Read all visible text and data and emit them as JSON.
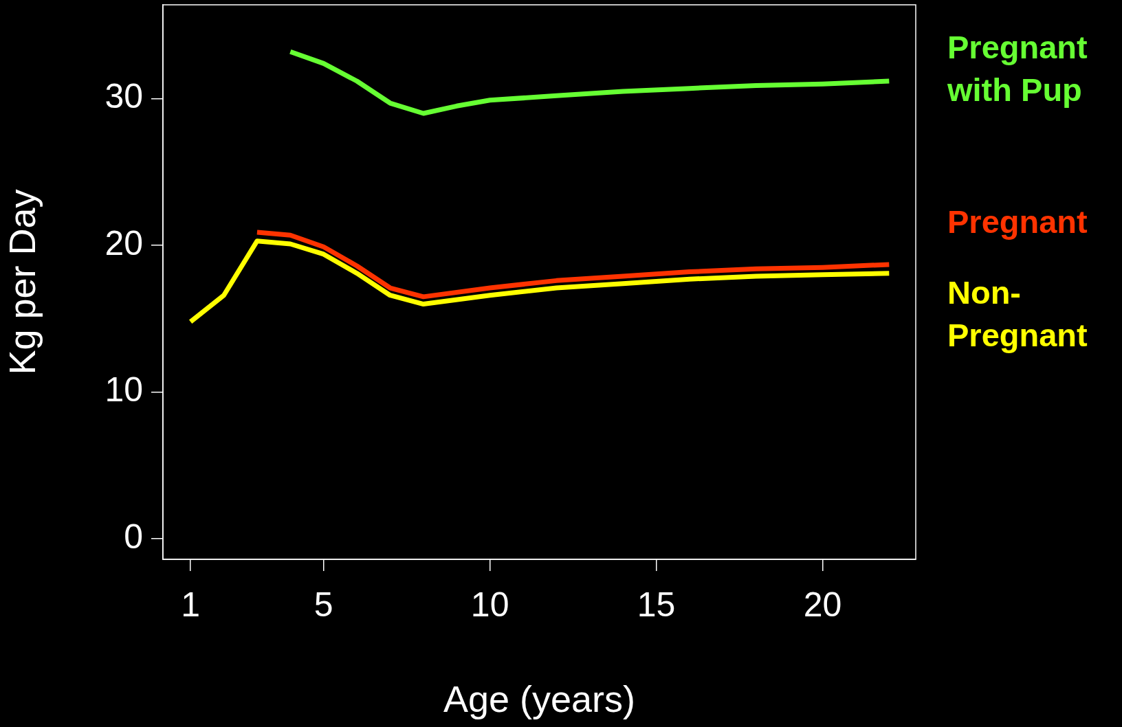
{
  "chart_data": {
    "type": "line",
    "xlabel": "Age (years)",
    "ylabel": "Kg per Day",
    "xlim": [
      0.17,
      22.8
    ],
    "ylim": [
      -1.4,
      36.4
    ],
    "xticks": [
      1,
      5,
      10,
      15,
      20
    ],
    "yticks": [
      0,
      10,
      20,
      30
    ],
    "grid": false,
    "legend": false,
    "marker": "none",
    "line_style": "solid",
    "series": [
      {
        "name": "Pregnant with Pup",
        "color": "#66ff33",
        "x": [
          4,
          5,
          6,
          7,
          8,
          9,
          10,
          12,
          14,
          16,
          18,
          20,
          22
        ],
        "values": [
          33.2,
          32.4,
          31.2,
          29.7,
          29.0,
          29.5,
          29.9,
          30.2,
          30.5,
          30.7,
          30.9,
          31.0,
          31.2
        ]
      },
      {
        "name": "Pregnant",
        "color": "#ff3300",
        "x": [
          3,
          4,
          5,
          6,
          7,
          8,
          10,
          12,
          14,
          16,
          18,
          20,
          22
        ],
        "values": [
          20.9,
          20.7,
          19.9,
          18.6,
          17.1,
          16.5,
          17.1,
          17.6,
          17.9,
          18.2,
          18.4,
          18.5,
          18.7
        ]
      },
      {
        "name": "Non-Pregnant",
        "color": "#ffff00",
        "x": [
          1,
          2,
          3,
          4,
          5,
          6,
          7,
          8,
          10,
          12,
          14,
          16,
          18,
          20,
          22
        ],
        "values": [
          14.8,
          16.6,
          20.3,
          20.1,
          19.4,
          18.1,
          16.6,
          16.0,
          16.6,
          17.1,
          17.4,
          17.7,
          17.9,
          18.0,
          18.1
        ]
      }
    ]
  }
}
